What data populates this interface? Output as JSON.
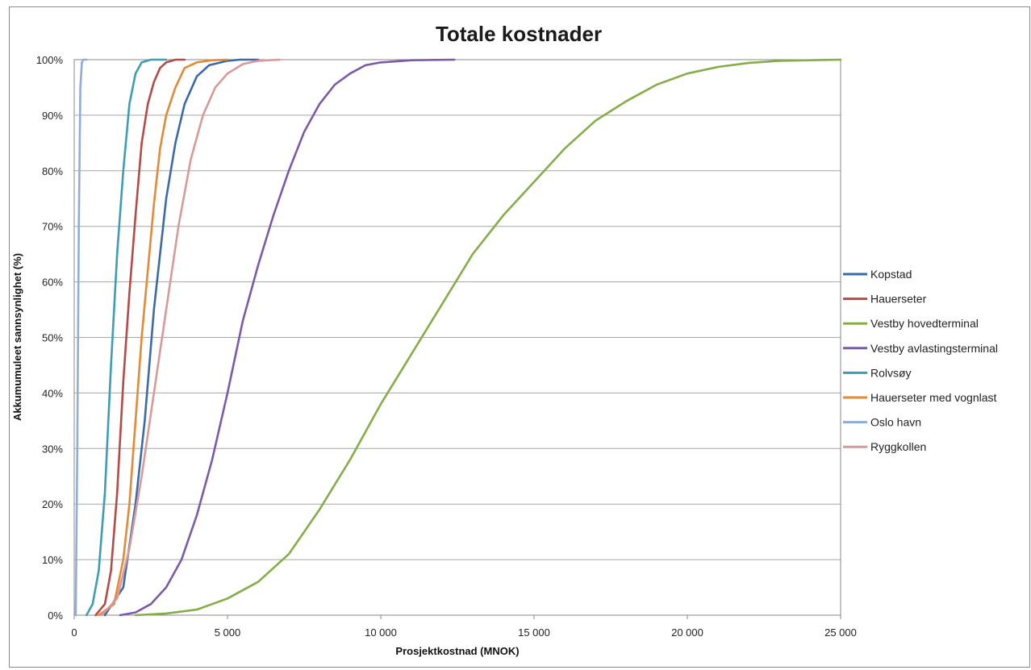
{
  "chart_data": {
    "type": "line",
    "title": "Totale kostnader",
    "xlabel": "Prosjektkostnad  (MNOK)",
    "ylabel": "Akkumumuleet sannsynlighet (%)",
    "xlim": [
      0,
      25000
    ],
    "ylim": [
      0,
      100
    ],
    "x_ticks": [
      0,
      5000,
      10000,
      15000,
      20000,
      25000
    ],
    "x_tick_labels": [
      "0",
      "5 000",
      "10 000",
      "15 000",
      "20 000",
      "25 000"
    ],
    "y_ticks": [
      0,
      10,
      20,
      30,
      40,
      50,
      60,
      70,
      80,
      90,
      100
    ],
    "y_tick_labels": [
      "0%",
      "10%",
      "20%",
      "30%",
      "40%",
      "50%",
      "60%",
      "70%",
      "80%",
      "90%",
      "100%"
    ],
    "grid": true,
    "legend_position": "right",
    "series": [
      {
        "name": "Kopstad",
        "color": "#3b6aa8",
        "x": [
          1000,
          1600,
          2000,
          2300,
          2600,
          2800,
          3000,
          3300,
          3600,
          4000,
          4400,
          5000,
          5400,
          6000
        ],
        "y": [
          0,
          5,
          20,
          35,
          55,
          65,
          75,
          85,
          92,
          97,
          99,
          99.8,
          100,
          100
        ]
      },
      {
        "name": "Hauerseter",
        "color": "#b54a46",
        "x": [
          700,
          1000,
          1200,
          1400,
          1600,
          1800,
          2000,
          2200,
          2400,
          2600,
          2800,
          3000,
          3300,
          3600
        ],
        "y": [
          0,
          2,
          8,
          22,
          42,
          58,
          72,
          85,
          92,
          96,
          98.5,
          99.5,
          100,
          100
        ]
      },
      {
        "name": "Vestby hovedterminal",
        "color": "#86ad48",
        "x": [
          2000,
          3000,
          4000,
          5000,
          6000,
          7000,
          8000,
          9000,
          10000,
          11000,
          12000,
          13000,
          14000,
          15000,
          16000,
          17000,
          18000,
          19000,
          20000,
          21000,
          22000,
          23000,
          25000
        ],
        "y": [
          0,
          0.3,
          1,
          3,
          6,
          11,
          19,
          28,
          38,
          47,
          56,
          65,
          72,
          78,
          84,
          89,
          92.5,
          95.5,
          97.5,
          98.7,
          99.4,
          99.8,
          100
        ]
      },
      {
        "name": "Vestby avlastingsterminal",
        "color": "#7b5aa6",
        "x": [
          1500,
          2000,
          2500,
          3000,
          3500,
          4000,
          4500,
          5000,
          5500,
          6000,
          6500,
          7000,
          7500,
          8000,
          8500,
          9000,
          9500,
          10000,
          11000,
          12400
        ],
        "y": [
          0,
          0.5,
          2,
          5,
          10,
          18,
          28,
          40,
          53,
          63,
          72,
          80,
          87,
          92,
          95.5,
          97.5,
          99,
          99.5,
          99.9,
          100
        ]
      },
      {
        "name": "Rolvsøy",
        "color": "#3d9db3",
        "x": [
          400,
          600,
          800,
          1000,
          1200,
          1400,
          1600,
          1800,
          2000,
          2200,
          2500,
          3000
        ],
        "y": [
          0,
          2,
          8,
          22,
          45,
          65,
          80,
          92,
          97.5,
          99.5,
          100,
          100
        ]
      },
      {
        "name": "Hauerseter med vognlast",
        "color": "#e38a35",
        "x": [
          800,
          1300,
          1600,
          1800,
          2000,
          2200,
          2400,
          2600,
          2800,
          3000,
          3300,
          3600,
          4000,
          4500,
          5000
        ],
        "y": [
          0,
          2,
          10,
          20,
          35,
          50,
          62,
          74,
          84,
          90,
          95,
          98.5,
          99.5,
          99.9,
          100
        ]
      },
      {
        "name": "Oslo havn",
        "color": "#8fadd6",
        "x": [
          50,
          100,
          150,
          200,
          250,
          300,
          350,
          400
        ],
        "y": [
          0,
          30,
          70,
          95,
          99.5,
          100,
          100,
          100
        ]
      },
      {
        "name": "Ryggkollen",
        "color": "#d9999a",
        "x": [
          900,
          1400,
          1800,
          2200,
          2600,
          3000,
          3400,
          3800,
          4200,
          4600,
          5000,
          5500,
          6000,
          6700
        ],
        "y": [
          0,
          3,
          12,
          25,
          40,
          55,
          70,
          82,
          90,
          95,
          97.5,
          99.2,
          99.8,
          100
        ]
      }
    ]
  }
}
